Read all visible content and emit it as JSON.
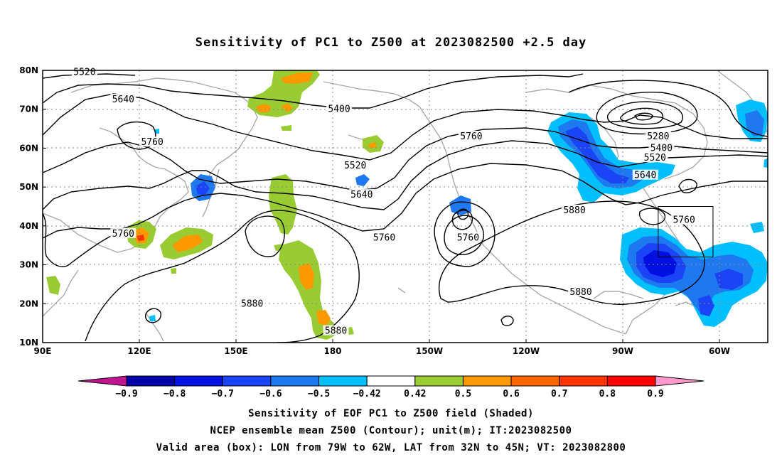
{
  "title": "Sensitivity of PC1 to Z500 at 2023082500 +2.5 day",
  "lat_labels": [
    "80N",
    "70N",
    "60N",
    "50N",
    "40N",
    "30N",
    "20N",
    "10N"
  ],
  "lon_labels": [
    "90E",
    "120E",
    "150E",
    "180",
    "150W",
    "120W",
    "90W",
    "60W"
  ],
  "contour_labels": [
    {
      "text": "5520",
      "lon": 103,
      "lat": 79.5
    },
    {
      "text": "5640",
      "lon": 115,
      "lat": 72.5
    },
    {
      "text": "5760",
      "lon": 124,
      "lat": 61.5
    },
    {
      "text": "5400",
      "lon": 182,
      "lat": 70
    },
    {
      "text": "5520",
      "lon": 187,
      "lat": 55.5
    },
    {
      "text": "5640",
      "lon": 189,
      "lat": 48
    },
    {
      "text": "5760",
      "lon": 196,
      "lat": 37
    },
    {
      "text": "5760",
      "lon": 223,
      "lat": 63
    },
    {
      "text": "5760",
      "lon": 222,
      "lat": 37
    },
    {
      "text": "5880",
      "lon": 255,
      "lat": 44
    },
    {
      "text": "5880",
      "lon": 257,
      "lat": 23
    },
    {
      "text": "5760",
      "lon": 115,
      "lat": 38
    },
    {
      "text": "5880",
      "lon": 155,
      "lat": 20
    },
    {
      "text": "5880",
      "lon": 181,
      "lat": 13
    },
    {
      "text": "5280",
      "lon": 281,
      "lat": 63
    },
    {
      "text": "5400",
      "lon": 282,
      "lat": 60
    },
    {
      "text": "5520",
      "lon": 280,
      "lat": 57.5
    },
    {
      "text": "5640",
      "lon": 277,
      "lat": 53
    },
    {
      "text": "5760",
      "lon": 289,
      "lat": 41.5
    }
  ],
  "colorbar": {
    "levels": [
      "-0.9",
      "-0.8",
      "-0.7",
      "-0.6",
      "-0.5",
      "-0.42",
      "0.42",
      "0.5",
      "0.6",
      "0.7",
      "0.8",
      "0.9"
    ],
    "colors": [
      "#c0158e",
      "#0000aa",
      "#0010e0",
      "#1a44f5",
      "#1e78f0",
      "#00bfff",
      "#ffffff",
      "#99cc33",
      "#ff9900",
      "#ff6600",
      "#ff3300",
      "#ff0000",
      "#ff99cc"
    ]
  },
  "caption_lines": [
    "Sensitivity of EOF PC1 to Z500 field (Shaded)",
    "NCEP ensemble mean Z500 (Contour); unit(m); IT:2023082500",
    "Valid area (box): LON from 79W to 62W, LAT from 32N to 45N; VT: 2023082800"
  ],
  "valid_box": {
    "lon_min": 281,
    "lon_max": 298,
    "lat_min": 32,
    "lat_max": 45
  }
}
